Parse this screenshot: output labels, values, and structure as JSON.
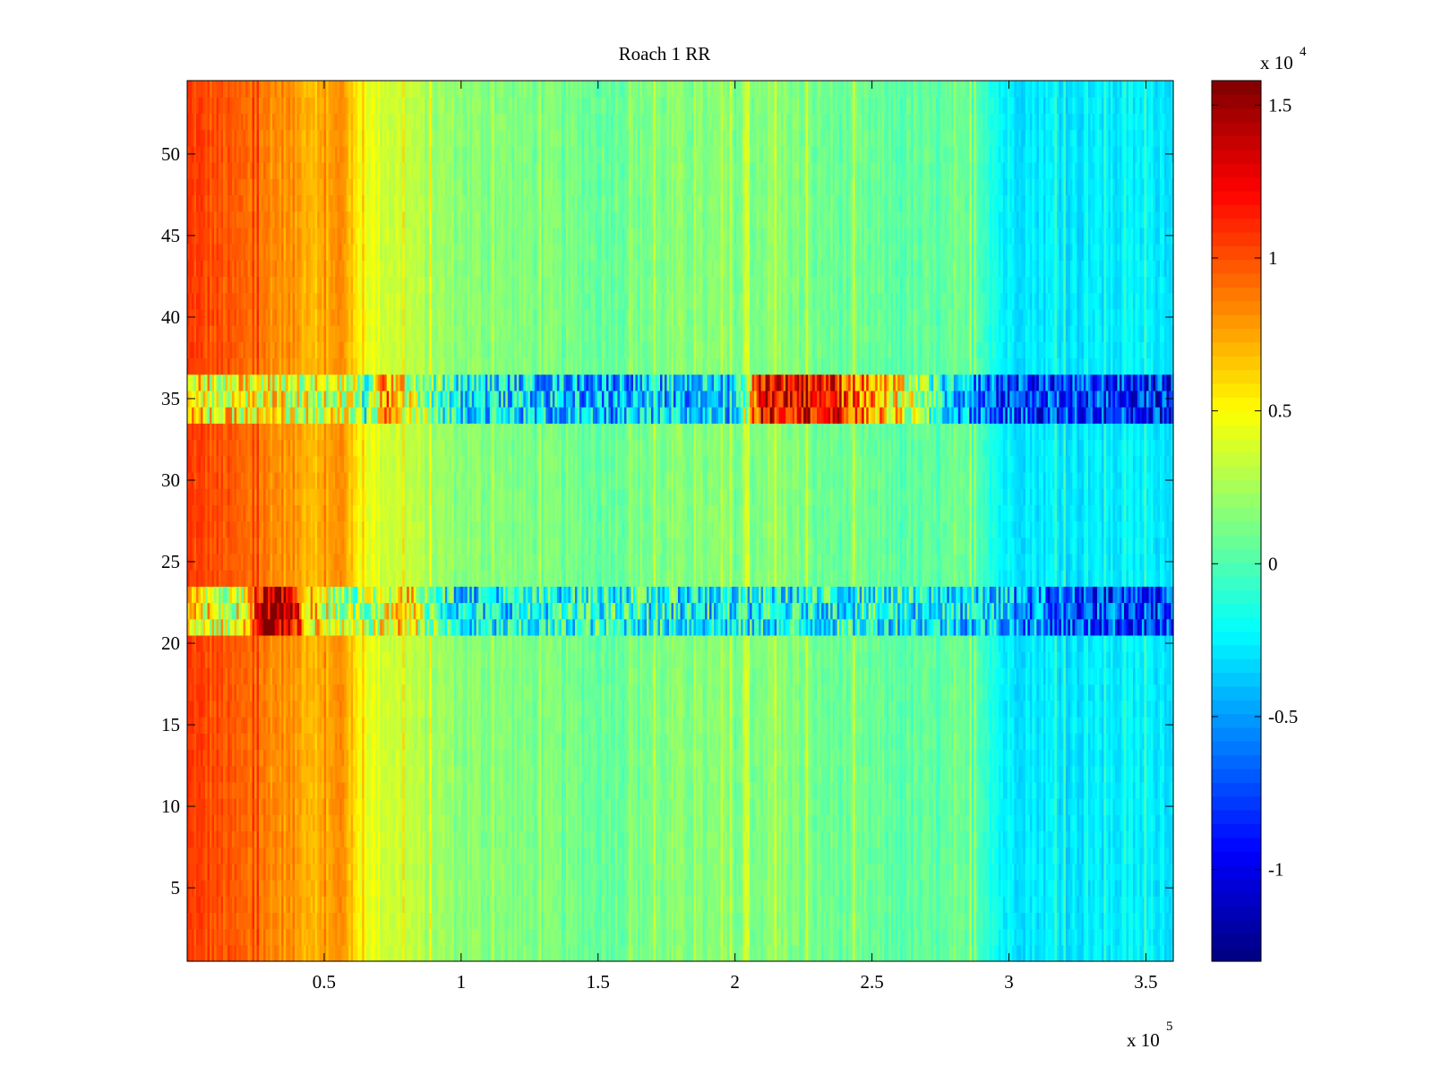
{
  "chart_data": {
    "type": "heatmap",
    "title": "Roach 1 RR",
    "xlabel": "",
    "ylabel": "",
    "x_exponent_label": "x 10",
    "x_exponent": "5",
    "x_range": [
      0,
      360000
    ],
    "y_range": [
      0.5,
      54.5
    ],
    "x_ticks": [
      50000,
      100000,
      150000,
      200000,
      250000,
      300000,
      350000
    ],
    "x_tick_labels": [
      "0.5",
      "1",
      "1.5",
      "2",
      "2.5",
      "3",
      "3.5"
    ],
    "y_ticks": [
      5,
      10,
      15,
      20,
      25,
      30,
      35,
      40,
      45,
      50
    ],
    "y_tick_labels": [
      "5",
      "10",
      "15",
      "20",
      "25",
      "30",
      "35",
      "40",
      "45",
      "50"
    ],
    "rows": 54,
    "colormap": "jet",
    "colorbar": {
      "range": [
        -13000,
        15800
      ],
      "ticks": [
        -10000,
        -5000,
        0,
        5000,
        10000,
        15000
      ],
      "tick_labels": [
        "-1",
        "-0.5",
        "0",
        "0.5",
        "1",
        "1.5"
      ],
      "exponent_label": "x 10",
      "exponent": "4"
    },
    "column_profile": {
      "x": [
        0,
        10000,
        20000,
        30000,
        40000,
        50000,
        57000,
        62000,
        70000,
        80000,
        90000,
        100000,
        150000,
        180000,
        200000,
        215000,
        230000,
        260000,
        290000,
        298000,
        320000,
        360000
      ],
      "values": [
        10500,
        10000,
        9200,
        8500,
        7800,
        7000,
        8500,
        5200,
        4000,
        3300,
        2300,
        1700,
        800,
        1500,
        1200,
        1800,
        900,
        400,
        200,
        -2500,
        -2800,
        -2600
      ]
    },
    "bands": [
      {
        "rows": [
          34,
          36
        ],
        "x": [
          0,
          60000,
          65000,
          72000,
          80000,
          100000,
          150000,
          200000,
          210000,
          230000,
          260000,
          280000,
          300000,
          360000
        ],
        "values": [
          5500,
          3500,
          -1500,
          9000,
          4000,
          -2000,
          -4500,
          -3000,
          13000,
          13000,
          5000,
          -4000,
          -7500,
          -8500
        ]
      },
      {
        "rows": [
          21,
          23
        ],
        "x": [
          0,
          20000,
          28000,
          38000,
          45000,
          60000,
          80000,
          100000,
          150000,
          200000,
          250000,
          295000,
          320000,
          360000
        ],
        "values": [
          5000,
          4000,
          14000,
          14000,
          6000,
          2000,
          6000,
          -3000,
          -1000,
          -2500,
          -1500,
          -3500,
          -7000,
          -8000
        ]
      }
    ]
  }
}
